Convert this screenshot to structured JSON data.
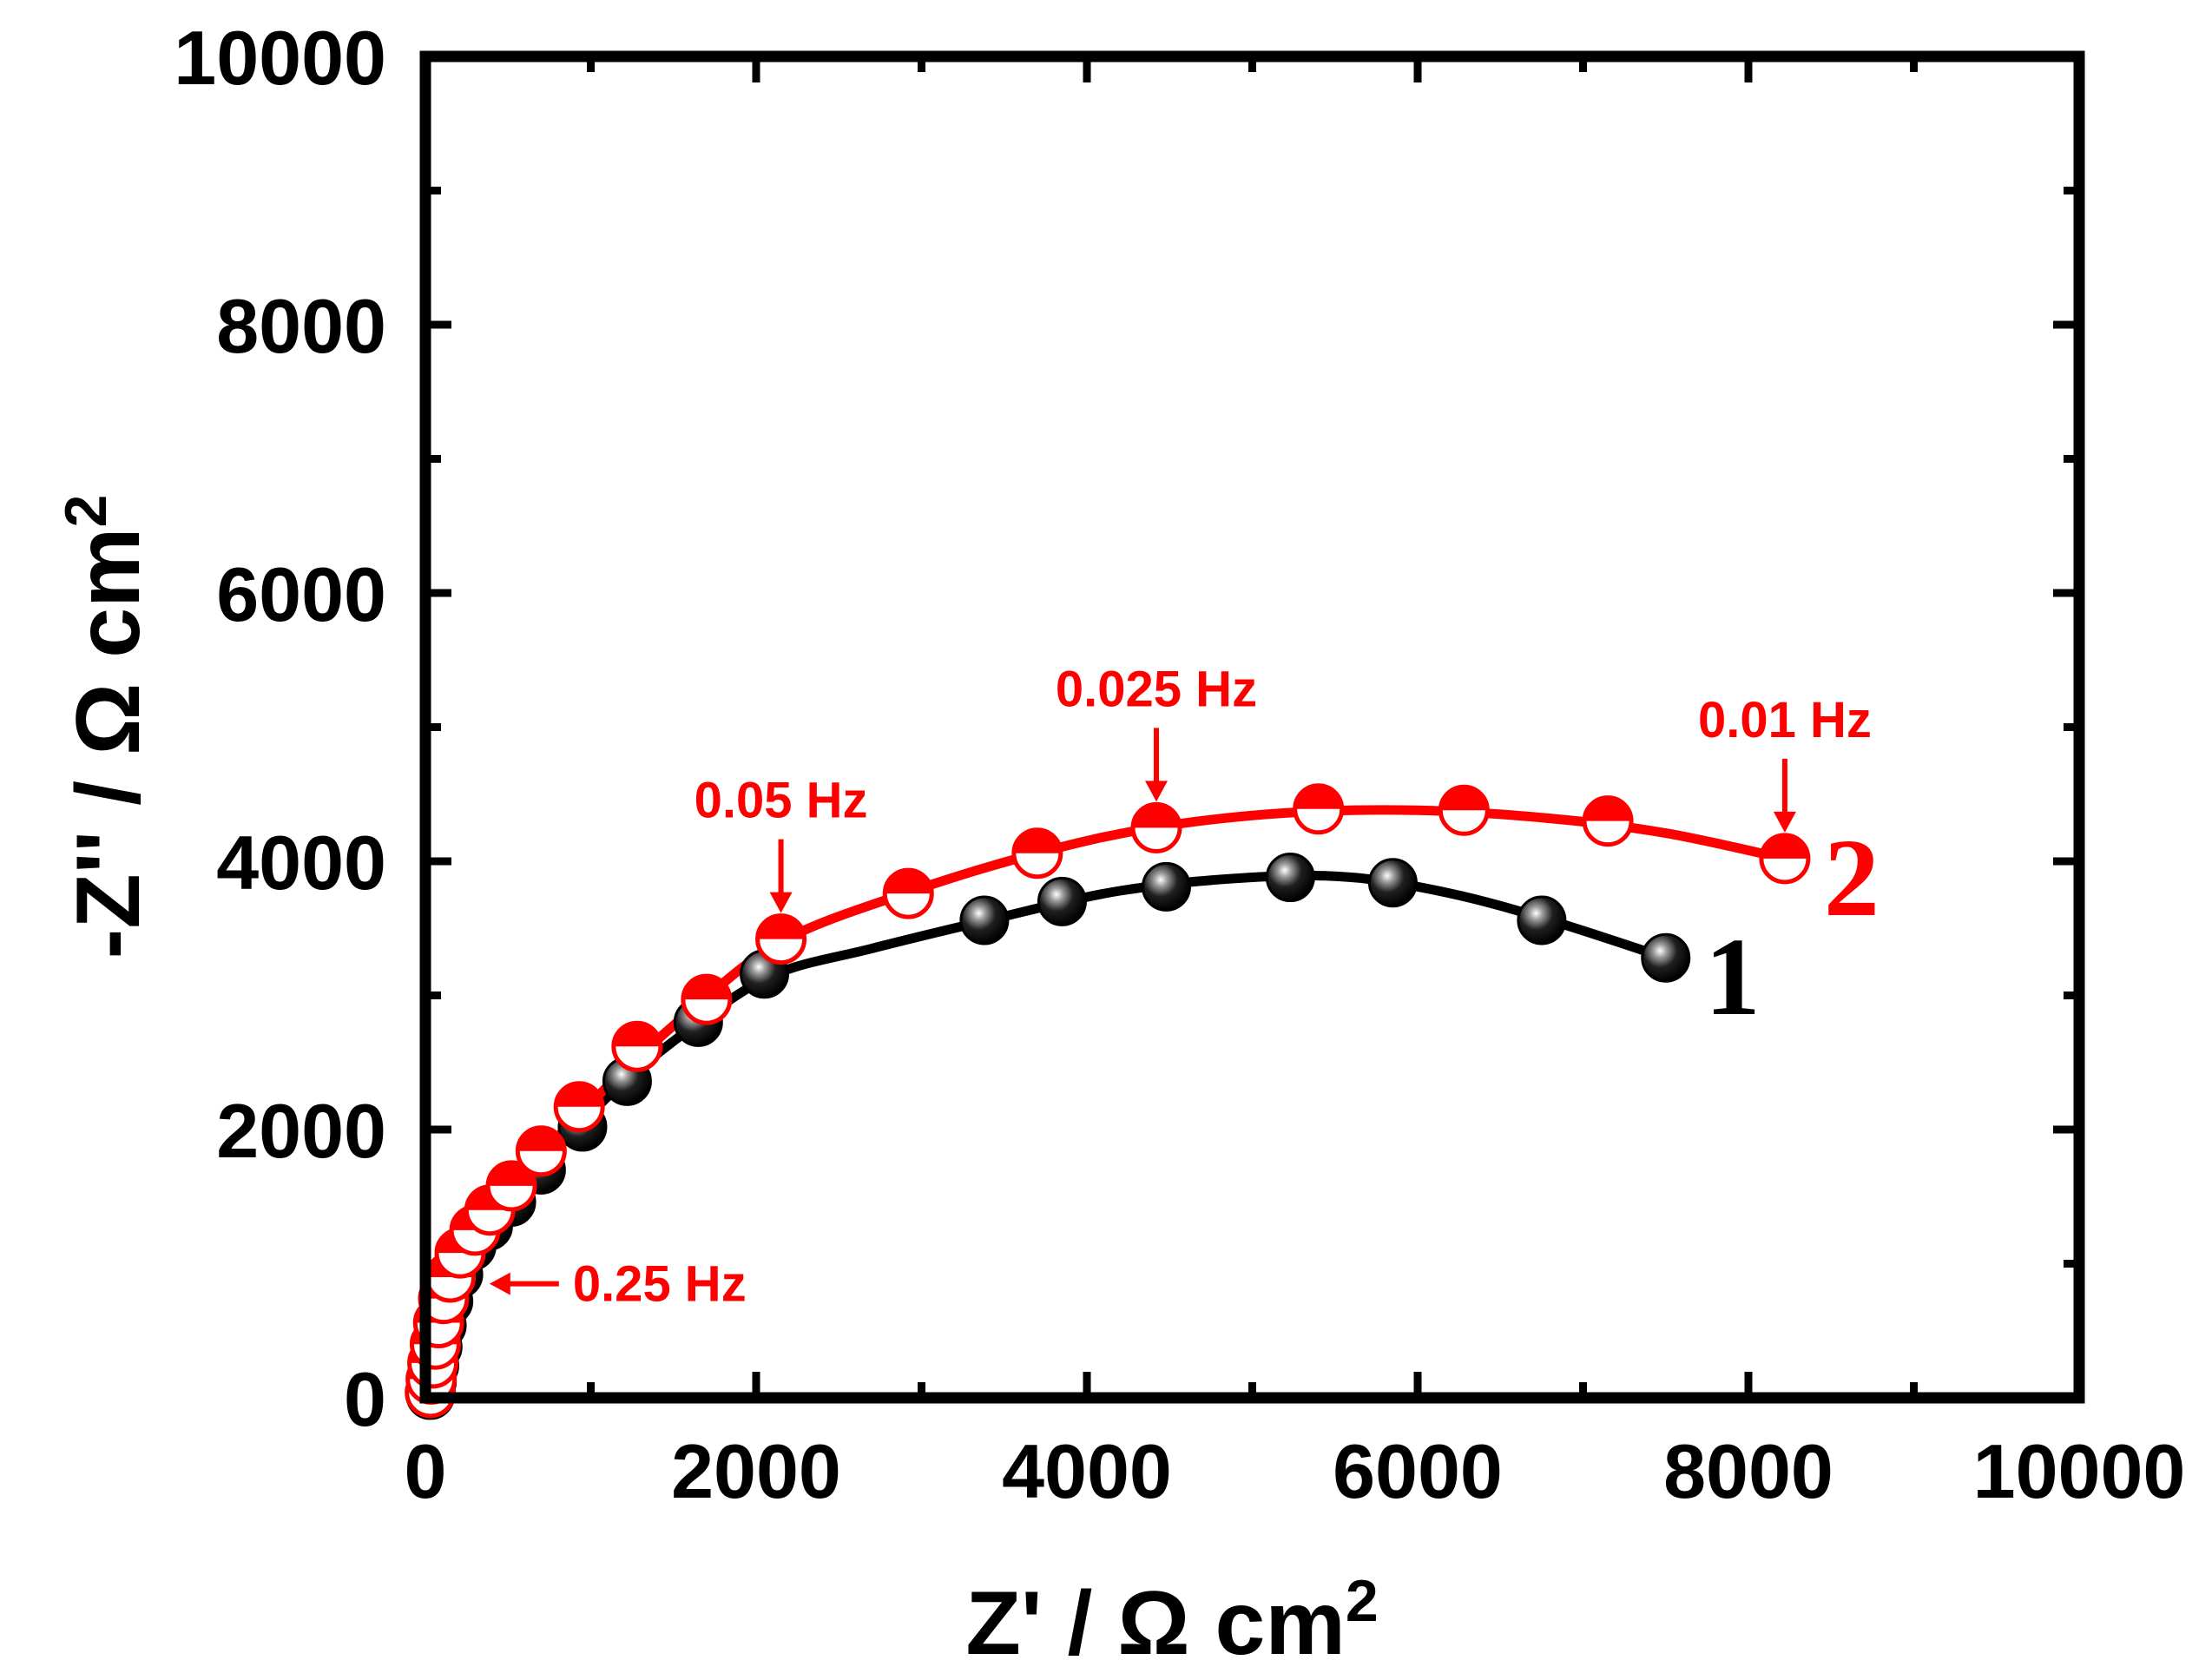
{
  "chart_data": {
    "type": "scatter",
    "title": "",
    "xlabel": "Z' / Ω cm",
    "xlabel_sup": "2",
    "ylabel": "-Z'' / Ω cm",
    "ylabel_sup": "2",
    "xlim": [
      0,
      10000
    ],
    "ylim": [
      0,
      10000
    ],
    "x_ticks": [
      0,
      2000,
      4000,
      6000,
      8000,
      10000
    ],
    "y_ticks": [
      0,
      2000,
      4000,
      6000,
      8000,
      10000
    ],
    "x_tick_labels": [
      "0",
      "2000",
      "4000",
      "6000",
      "8000",
      "10000"
    ],
    "y_tick_labels": [
      "0",
      "2000",
      "4000",
      "6000",
      "8000",
      "10000"
    ],
    "grid": false,
    "series": [
      {
        "name": "1",
        "color": "#000000",
        "marker": "sphere",
        "x": [
          30,
          40,
          55,
          75,
          100,
          140,
          200,
          280,
          380,
          520,
          700,
          950,
          1220,
          1650,
          2050,
          3380,
          3850,
          4480,
          5230,
          5850,
          6750,
          7500
        ],
        "y": [
          20,
          120,
          240,
          380,
          540,
          720,
          920,
          1130,
          1280,
          1460,
          1700,
          2020,
          2360,
          2800,
          3160,
          3560,
          3700,
          3810,
          3880,
          3840,
          3560,
          3280
        ],
        "fit_x": [
          30,
          60,
          120,
          250,
          450,
          750,
          1150,
          1600,
          2100,
          2700,
          3400,
          4200,
          5000,
          5600,
          6200,
          6800,
          7500
        ],
        "fit_y": [
          20,
          300,
          700,
          1100,
          1450,
          1800,
          2300,
          2750,
          3150,
          3350,
          3560,
          3780,
          3880,
          3880,
          3760,
          3560,
          3280
        ]
      },
      {
        "name": "2",
        "color": "#ff0000",
        "marker": "half-filled",
        "x": [
          30,
          35,
          45,
          60,
          80,
          110,
          150,
          210,
          300,
          390,
          520,
          700,
          930,
          1280,
          1700,
          2150,
          2920,
          3700,
          4420,
          5400,
          6280,
          7150,
          8220
        ],
        "y": [
          40,
          140,
          260,
          400,
          560,
          740,
          900,
          1080,
          1250,
          1400,
          1580,
          1840,
          2170,
          2620,
          2970,
          3420,
          3760,
          4060,
          4250,
          4390,
          4380,
          4300,
          4020
        ],
        "fit_x": [
          30,
          60,
          120,
          250,
          450,
          750,
          1150,
          1600,
          2150,
          2900,
          3700,
          4400,
          5200,
          6000,
          6800,
          7500,
          8220
        ],
        "fit_y": [
          40,
          400,
          820,
          1180,
          1480,
          1880,
          2380,
          2880,
          3400,
          3760,
          4060,
          4250,
          4360,
          4380,
          4320,
          4210,
          4020
        ]
      }
    ],
    "series_labels": [
      {
        "text": "1",
        "color": "#000000"
      },
      {
        "text": "2",
        "color": "#ff0000"
      }
    ],
    "annotations": [
      {
        "text": "0.25 Hz",
        "x": 230,
        "y": 850,
        "arrow": "left",
        "color": "#ff0000"
      },
      {
        "text": "0.05 Hz",
        "x": 2150,
        "y": 3420,
        "arrow": "down",
        "color": "#ff0000"
      },
      {
        "text": "0.025 Hz",
        "x": 4420,
        "y": 4250,
        "arrow": "down",
        "color": "#ff0000"
      },
      {
        "text": "0.01 Hz",
        "x": 8220,
        "y": 4020,
        "arrow": "down",
        "color": "#ff0000"
      }
    ]
  }
}
